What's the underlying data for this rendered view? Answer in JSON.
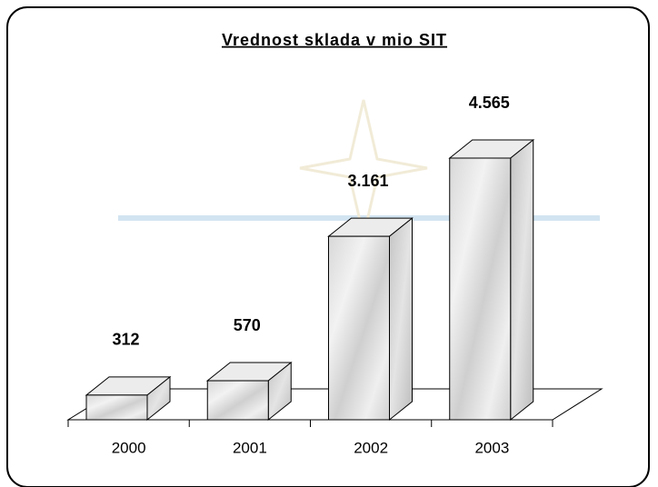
{
  "chart_data": {
    "type": "bar",
    "title": "Vrednost sklada v mio SIT",
    "categories": [
      "2000",
      "2001",
      "2002",
      "2003"
    ],
    "values": [
      312,
      570,
      3161,
      4565
    ],
    "value_labels": [
      "312",
      "570",
      "3.161",
      "4.565"
    ]
  }
}
